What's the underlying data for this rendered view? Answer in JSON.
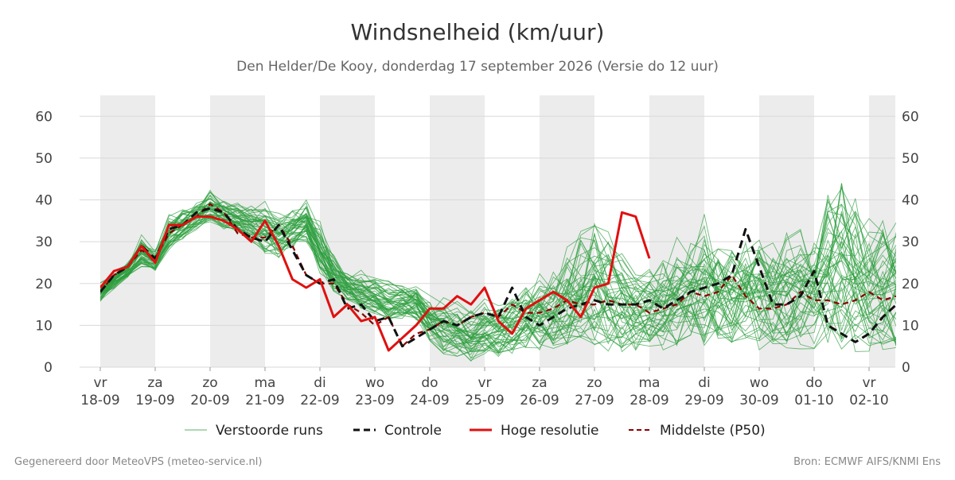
{
  "chart_data": {
    "type": "line",
    "title": "Windsnelheid (km/uur)",
    "subtitle": "Den Helder/De Kooy, donderdag 17 september 2026 (Versie do 12 uur)",
    "ylim": [
      0,
      65
    ],
    "yticks": [
      0,
      10,
      20,
      30,
      40,
      50,
      60
    ],
    "x_days": 15.5,
    "step_days": 0.25,
    "shaded_days": [
      0,
      2,
      4,
      6,
      8,
      10,
      12,
      14
    ],
    "x_ticks": [
      {
        "day": 0,
        "dow": "vr",
        "date": "18-09"
      },
      {
        "day": 1,
        "dow": "za",
        "date": "19-09"
      },
      {
        "day": 2,
        "dow": "zo",
        "date": "20-09"
      },
      {
        "day": 3,
        "dow": "ma",
        "date": "21-09"
      },
      {
        "day": 4,
        "dow": "di",
        "date": "22-09"
      },
      {
        "day": 5,
        "dow": "wo",
        "date": "23-09"
      },
      {
        "day": 6,
        "dow": "do",
        "date": "24-09"
      },
      {
        "day": 7,
        "dow": "vr",
        "date": "25-09"
      },
      {
        "day": 8,
        "dow": "za",
        "date": "26-09"
      },
      {
        "day": 9,
        "dow": "zo",
        "date": "27-09"
      },
      {
        "day": 10,
        "dow": "ma",
        "date": "28-09"
      },
      {
        "day": 11,
        "dow": "di",
        "date": "29-09"
      },
      {
        "day": 12,
        "dow": "wo",
        "date": "30-09"
      },
      {
        "day": 13,
        "dow": "do",
        "date": "01-10"
      },
      {
        "day": 14,
        "dow": "vr",
        "date": "02-10"
      }
    ],
    "colors": {
      "ensemble": "#2e9e3e",
      "control": "#111111",
      "hires": "#e01010",
      "median": "#8b0000",
      "shade": "#ececec",
      "grid": "#d9d9d9"
    },
    "legend": {
      "ensemble": "Verstoorde runs",
      "control": "Controle",
      "hires": "Hoge resolutie",
      "median": "Middelste (P50)"
    },
    "ensemble_count": 50,
    "ensemble_envelope": {
      "note_free": true,
      "min": [
        14,
        17,
        20,
        21,
        21,
        25,
        28,
        30,
        31,
        30,
        30,
        26,
        22,
        22,
        24,
        26,
        18,
        14,
        12,
        10,
        9,
        8,
        8,
        8,
        6,
        3,
        2,
        1,
        1,
        2,
        3,
        4,
        4,
        4,
        4,
        4,
        4,
        3,
        3,
        3,
        4,
        4,
        4,
        5,
        5,
        5,
        5,
        5,
        4,
        4,
        4,
        4,
        4,
        4,
        3,
        3,
        3,
        3,
        3,
        3,
        1,
        1,
        2,
        2,
        3,
        3,
        3,
        3,
        3,
        2,
        2,
        3,
        3,
        3,
        3,
        3,
        2,
        2,
        2,
        2,
        2,
        2,
        2,
        2,
        2,
        2,
        2,
        2,
        2,
        2,
        2,
        2,
        2
      ],
      "max": [
        22,
        25,
        27,
        35,
        30,
        40,
        41,
        43,
        47,
        44,
        42,
        44,
        45,
        42,
        44,
        45,
        40,
        32,
        28,
        27,
        26,
        25,
        24,
        24,
        21,
        20,
        19,
        18,
        20,
        21,
        23,
        25,
        27,
        30,
        35,
        40,
        49,
        42,
        35,
        30,
        30,
        35,
        38,
        40,
        45,
        40,
        38,
        42,
        42,
        40,
        40,
        42,
        43,
        55,
        65,
        55,
        45,
        44,
        46,
        42,
        40,
        40,
        38,
        42,
        45,
        50,
        52,
        50,
        50,
        48,
        50,
        50,
        50,
        50,
        48,
        44,
        42,
        46,
        48,
        50,
        48,
        46,
        44,
        44,
        46,
        44,
        42,
        40,
        40,
        40,
        39,
        40,
        40
      ]
    },
    "series": [
      {
        "name": "Controle",
        "values": [
          18,
          22,
          24,
          29,
          26,
          33,
          34,
          37,
          38,
          37,
          33,
          31,
          30,
          34,
          28,
          22,
          20,
          21,
          14,
          15,
          11,
          12,
          5,
          7,
          9,
          11,
          10,
          12,
          13,
          12,
          19,
          12,
          10,
          12,
          14,
          15,
          16,
          15,
          15,
          15,
          16,
          14,
          16,
          18,
          19,
          20,
          22,
          33,
          24,
          15,
          15,
          17,
          23,
          10,
          8,
          6,
          8,
          12,
          15,
          18,
          16,
          15,
          16,
          12,
          23,
          23,
          18,
          15,
          10,
          8,
          7,
          6,
          9,
          9,
          8,
          7,
          8,
          7,
          7,
          7,
          7,
          7,
          7,
          7,
          7,
          7,
          7,
          7,
          7,
          7,
          7,
          7,
          7
        ]
      },
      {
        "name": "Hoge resolutie",
        "values": [
          19,
          23,
          24,
          29,
          25,
          34,
          34,
          36,
          36,
          35,
          33,
          30,
          35,
          29,
          21,
          19,
          21,
          12,
          15,
          11,
          12,
          4,
          7,
          10,
          14,
          14,
          17,
          15,
          19,
          11,
          8,
          14,
          16,
          18,
          16,
          12,
          19,
          20,
          37,
          36,
          26
        ]
      },
      {
        "name": "Middelste (P50)",
        "values": [
          18,
          22,
          24,
          28,
          26,
          32,
          34,
          36,
          39,
          37,
          32,
          31,
          31,
          34,
          29,
          22,
          20,
          20,
          15,
          13,
          10,
          12,
          5,
          8,
          9,
          11,
          10,
          12,
          13,
          12,
          15,
          13,
          13,
          14,
          16,
          15,
          15,
          16,
          15,
          15,
          13,
          14,
          15,
          18,
          17,
          18,
          22,
          17,
          14,
          14,
          15,
          18,
          16,
          16,
          15,
          16,
          18,
          16,
          17,
          17,
          20,
          18,
          16,
          15,
          17,
          17,
          16,
          16,
          16,
          16,
          16,
          16,
          16,
          16,
          16,
          16,
          16,
          16,
          16,
          16,
          16,
          16,
          16,
          16,
          16,
          16,
          16,
          16,
          16,
          16,
          16,
          16,
          16
        ]
      }
    ]
  },
  "footer": {
    "left": "Gegenereerd door MeteoVPS (meteo-service.nl)",
    "right": "Bron: ECMWF AIFS/KNMI Ens"
  }
}
